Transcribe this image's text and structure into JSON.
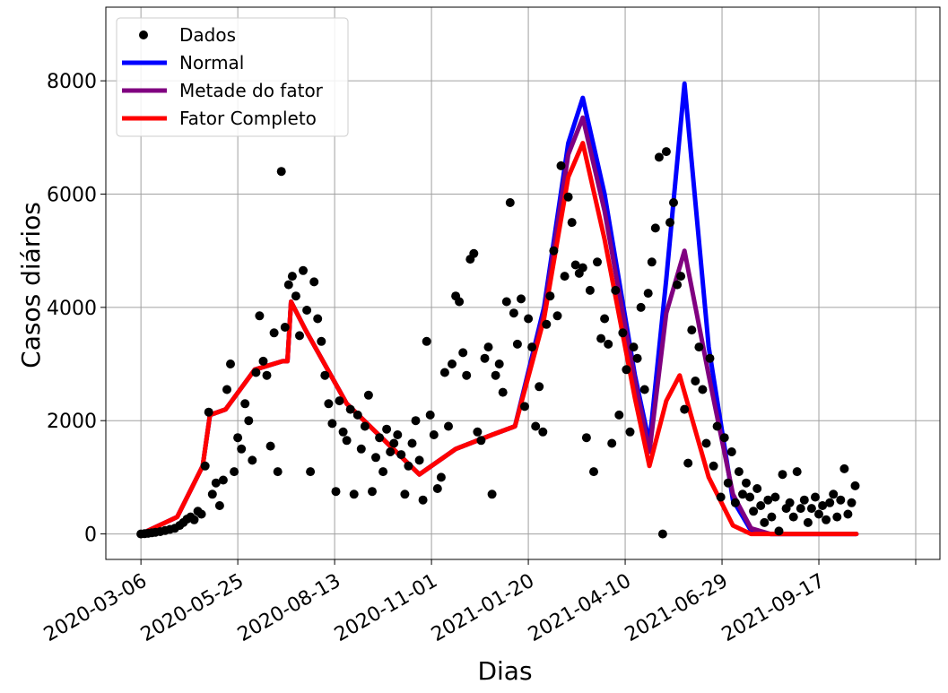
{
  "chart_data": {
    "type": "line",
    "title": "",
    "xlabel": "Dias",
    "ylabel": "Casos diários",
    "x_ticks": [
      "2020-03-06",
      "2020-05-25",
      "2020-08-13",
      "2020-11-01",
      "2021-01-20",
      "2021-04-10",
      "2021-06-29",
      "2021-09-17"
    ],
    "y_ticks": [
      "0",
      "2000",
      "4000",
      "6000",
      "8000"
    ],
    "xlim": [
      "2020-02-06",
      "2021-12-26"
    ],
    "ylim": [
      -450,
      9300
    ],
    "grid": true,
    "legend_position": "top-left",
    "series": [
      {
        "name": "Dados",
        "kind": "scatter",
        "color": "#000000",
        "points": [
          [
            "2020-03-06",
            0
          ],
          [
            "2020-03-09",
            5
          ],
          [
            "2020-03-12",
            10
          ],
          [
            "2020-03-15",
            20
          ],
          [
            "2020-03-18",
            30
          ],
          [
            "2020-03-22",
            40
          ],
          [
            "2020-03-26",
            60
          ],
          [
            "2020-03-30",
            80
          ],
          [
            "2020-04-03",
            100
          ],
          [
            "2020-04-07",
            150
          ],
          [
            "2020-04-10",
            200
          ],
          [
            "2020-04-13",
            260
          ],
          [
            "2020-04-16",
            300
          ],
          [
            "2020-04-19",
            250
          ],
          [
            "2020-04-22",
            400
          ],
          [
            "2020-04-25",
            350
          ],
          [
            "2020-04-28",
            1200
          ],
          [
            "2020-05-01",
            2150
          ],
          [
            "2020-05-04",
            700
          ],
          [
            "2020-05-07",
            900
          ],
          [
            "2020-05-10",
            500
          ],
          [
            "2020-05-13",
            950
          ],
          [
            "2020-05-16",
            2550
          ],
          [
            "2020-05-19",
            3000
          ],
          [
            "2020-05-22",
            1100
          ],
          [
            "2020-05-25",
            1700
          ],
          [
            "2020-05-28",
            1500
          ],
          [
            "2020-05-31",
            2300
          ],
          [
            "2020-06-03",
            2000
          ],
          [
            "2020-06-06",
            1300
          ],
          [
            "2020-06-09",
            2850
          ],
          [
            "2020-06-12",
            3850
          ],
          [
            "2020-06-15",
            3050
          ],
          [
            "2020-06-18",
            2800
          ],
          [
            "2020-06-21",
            1550
          ],
          [
            "2020-06-24",
            3550
          ],
          [
            "2020-06-27",
            1100
          ],
          [
            "2020-06-30",
            6400
          ],
          [
            "2020-07-03",
            3650
          ],
          [
            "2020-07-06",
            4400
          ],
          [
            "2020-07-09",
            4550
          ],
          [
            "2020-07-12",
            4200
          ],
          [
            "2020-07-15",
            3500
          ],
          [
            "2020-07-18",
            4650
          ],
          [
            "2020-07-21",
            3950
          ],
          [
            "2020-07-24",
            1100
          ],
          [
            "2020-07-27",
            4450
          ],
          [
            "2020-07-30",
            3800
          ],
          [
            "2020-08-02",
            3400
          ],
          [
            "2020-08-05",
            2800
          ],
          [
            "2020-08-08",
            2300
          ],
          [
            "2020-08-11",
            1950
          ],
          [
            "2020-08-14",
            750
          ],
          [
            "2020-08-17",
            2350
          ],
          [
            "2020-08-20",
            1800
          ],
          [
            "2020-08-23",
            1650
          ],
          [
            "2020-08-26",
            2200
          ],
          [
            "2020-08-29",
            700
          ],
          [
            "2020-09-01",
            2100
          ],
          [
            "2020-09-04",
            1500
          ],
          [
            "2020-09-07",
            1900
          ],
          [
            "2020-09-10",
            2450
          ],
          [
            "2020-09-13",
            750
          ],
          [
            "2020-09-16",
            1350
          ],
          [
            "2020-09-19",
            1700
          ],
          [
            "2020-09-22",
            1100
          ],
          [
            "2020-09-25",
            1850
          ],
          [
            "2020-09-28",
            1450
          ],
          [
            "2020-10-01",
            1600
          ],
          [
            "2020-10-04",
            1750
          ],
          [
            "2020-10-07",
            1400
          ],
          [
            "2020-10-10",
            700
          ],
          [
            "2020-10-13",
            1200
          ],
          [
            "2020-10-16",
            1600
          ],
          [
            "2020-10-19",
            2000
          ],
          [
            "2020-10-22",
            1300
          ],
          [
            "2020-10-25",
            600
          ],
          [
            "2020-10-28",
            3400
          ],
          [
            "2020-10-31",
            2100
          ],
          [
            "2020-11-03",
            1750
          ],
          [
            "2020-11-06",
            800
          ],
          [
            "2020-11-09",
            1000
          ],
          [
            "2020-11-12",
            2850
          ],
          [
            "2020-11-15",
            1900
          ],
          [
            "2020-11-18",
            3000
          ],
          [
            "2020-11-21",
            4200
          ],
          [
            "2020-11-24",
            4100
          ],
          [
            "2020-11-27",
            3200
          ],
          [
            "2020-11-30",
            2800
          ],
          [
            "2020-12-03",
            4850
          ],
          [
            "2020-12-06",
            4950
          ],
          [
            "2020-12-09",
            1800
          ],
          [
            "2020-12-12",
            1650
          ],
          [
            "2020-12-15",
            3100
          ],
          [
            "2020-12-18",
            3300
          ],
          [
            "2020-12-21",
            700
          ],
          [
            "2020-12-24",
            2800
          ],
          [
            "2020-12-27",
            3000
          ],
          [
            "2020-12-30",
            2500
          ],
          [
            "2021-01-02",
            4100
          ],
          [
            "2021-01-05",
            5850
          ],
          [
            "2021-01-08",
            3900
          ],
          [
            "2021-01-11",
            3350
          ],
          [
            "2021-01-14",
            4150
          ],
          [
            "2021-01-17",
            2250
          ],
          [
            "2021-01-20",
            3800
          ],
          [
            "2021-01-23",
            3300
          ],
          [
            "2021-01-26",
            1900
          ],
          [
            "2021-01-29",
            2600
          ],
          [
            "2021-02-01",
            1800
          ],
          [
            "2021-02-04",
            3700
          ],
          [
            "2021-02-07",
            4200
          ],
          [
            "2021-02-10",
            5000
          ],
          [
            "2021-02-13",
            3850
          ],
          [
            "2021-02-16",
            6500
          ],
          [
            "2021-02-19",
            4550
          ],
          [
            "2021-02-22",
            5950
          ],
          [
            "2021-02-25",
            5500
          ],
          [
            "2021-02-28",
            4750
          ],
          [
            "2021-03-03",
            4600
          ],
          [
            "2021-03-06",
            4700
          ],
          [
            "2021-03-09",
            1700
          ],
          [
            "2021-03-12",
            4300
          ],
          [
            "2021-03-15",
            1100
          ],
          [
            "2021-03-18",
            4800
          ],
          [
            "2021-03-21",
            3450
          ],
          [
            "2021-03-24",
            3800
          ],
          [
            "2021-03-27",
            3350
          ],
          [
            "2021-03-30",
            1600
          ],
          [
            "2021-04-02",
            4300
          ],
          [
            "2021-04-05",
            2100
          ],
          [
            "2021-04-08",
            3550
          ],
          [
            "2021-04-11",
            2900
          ],
          [
            "2021-04-14",
            1800
          ],
          [
            "2021-04-17",
            3300
          ],
          [
            "2021-04-20",
            3100
          ],
          [
            "2021-04-23",
            4000
          ],
          [
            "2021-04-26",
            2550
          ],
          [
            "2021-04-29",
            4250
          ],
          [
            "2021-05-02",
            4800
          ],
          [
            "2021-05-05",
            5400
          ],
          [
            "2021-05-08",
            6650
          ],
          [
            "2021-05-11",
            0
          ],
          [
            "2021-05-14",
            6750
          ],
          [
            "2021-05-17",
            5500
          ],
          [
            "2021-05-20",
            5850
          ],
          [
            "2021-05-23",
            4400
          ],
          [
            "2021-05-26",
            4550
          ],
          [
            "2021-05-29",
            2200
          ],
          [
            "2021-06-01",
            1250
          ],
          [
            "2021-06-04",
            3600
          ],
          [
            "2021-06-07",
            2700
          ],
          [
            "2021-06-10",
            3300
          ],
          [
            "2021-06-13",
            2550
          ],
          [
            "2021-06-16",
            1600
          ],
          [
            "2021-06-19",
            3100
          ],
          [
            "2021-06-22",
            1200
          ],
          [
            "2021-06-25",
            1900
          ],
          [
            "2021-06-28",
            650
          ],
          [
            "2021-07-01",
            1700
          ],
          [
            "2021-07-04",
            900
          ],
          [
            "2021-07-07",
            1450
          ],
          [
            "2021-07-10",
            550
          ],
          [
            "2021-07-13",
            1100
          ],
          [
            "2021-07-16",
            700
          ],
          [
            "2021-07-19",
            900
          ],
          [
            "2021-07-22",
            650
          ],
          [
            "2021-07-25",
            400
          ],
          [
            "2021-07-28",
            800
          ],
          [
            "2021-07-31",
            500
          ],
          [
            "2021-08-03",
            200
          ],
          [
            "2021-08-06",
            600
          ],
          [
            "2021-08-09",
            300
          ],
          [
            "2021-08-12",
            650
          ],
          [
            "2021-08-15",
            50
          ],
          [
            "2021-08-18",
            1050
          ],
          [
            "2021-08-21",
            450
          ],
          [
            "2021-08-24",
            550
          ],
          [
            "2021-08-27",
            300
          ],
          [
            "2021-08-30",
            1100
          ],
          [
            "2021-09-02",
            450
          ],
          [
            "2021-09-05",
            600
          ],
          [
            "2021-09-08",
            200
          ],
          [
            "2021-09-11",
            450
          ],
          [
            "2021-09-14",
            650
          ],
          [
            "2021-09-17",
            350
          ],
          [
            "2021-09-20",
            500
          ],
          [
            "2021-09-23",
            250
          ],
          [
            "2021-09-26",
            550
          ],
          [
            "2021-09-29",
            700
          ],
          [
            "2021-10-02",
            300
          ],
          [
            "2021-10-05",
            600
          ],
          [
            "2021-10-08",
            1150
          ],
          [
            "2021-10-11",
            350
          ],
          [
            "2021-10-14",
            550
          ],
          [
            "2021-10-17",
            850
          ]
        ]
      },
      {
        "name": "Normal",
        "kind": "line",
        "color": "#0000ff",
        "points": [
          [
            "2020-03-06",
            0
          ],
          [
            "2020-04-05",
            300
          ],
          [
            "2020-04-26",
            1200
          ],
          [
            "2020-05-02",
            2100
          ],
          [
            "2020-05-15",
            2200
          ],
          [
            "2020-06-08",
            2900
          ],
          [
            "2020-07-01",
            3050
          ],
          [
            "2020-07-05",
            3050
          ],
          [
            "2020-07-08",
            4100
          ],
          [
            "2020-07-20",
            3600
          ],
          [
            "2020-08-23",
            2300
          ],
          [
            "2020-10-22",
            1050
          ],
          [
            "2020-11-21",
            1500
          ],
          [
            "2020-12-21",
            1750
          ],
          [
            "2021-01-09",
            1900
          ],
          [
            "2021-02-02",
            4000
          ],
          [
            "2021-02-22",
            6900
          ],
          [
            "2021-03-06",
            7700
          ],
          [
            "2021-03-24",
            6000
          ],
          [
            "2021-04-18",
            2800
          ],
          [
            "2021-04-30",
            1600
          ],
          [
            "2021-05-14",
            4500
          ],
          [
            "2021-05-29",
            7950
          ],
          [
            "2021-06-18",
            3300
          ],
          [
            "2021-07-08",
            600
          ],
          [
            "2021-07-23",
            60
          ],
          [
            "2021-08-08",
            0
          ],
          [
            "2021-10-18",
            0
          ]
        ]
      },
      {
        "name": "Metade do fator",
        "kind": "line",
        "color": "#800080",
        "points": [
          [
            "2020-03-06",
            0
          ],
          [
            "2020-04-05",
            300
          ],
          [
            "2020-04-26",
            1200
          ],
          [
            "2020-05-02",
            2100
          ],
          [
            "2020-05-15",
            2200
          ],
          [
            "2020-06-08",
            2900
          ],
          [
            "2020-07-01",
            3050
          ],
          [
            "2020-07-05",
            3050
          ],
          [
            "2020-07-08",
            4100
          ],
          [
            "2020-07-20",
            3600
          ],
          [
            "2020-08-23",
            2300
          ],
          [
            "2020-10-22",
            1050
          ],
          [
            "2020-11-21",
            1500
          ],
          [
            "2020-12-21",
            1750
          ],
          [
            "2021-01-09",
            1900
          ],
          [
            "2021-02-02",
            3900
          ],
          [
            "2021-02-22",
            6700
          ],
          [
            "2021-03-06",
            7350
          ],
          [
            "2021-03-24",
            5700
          ],
          [
            "2021-04-18",
            2700
          ],
          [
            "2021-04-30",
            1450
          ],
          [
            "2021-05-14",
            3900
          ],
          [
            "2021-05-29",
            5000
          ],
          [
            "2021-06-18",
            2800
          ],
          [
            "2021-07-08",
            700
          ],
          [
            "2021-07-23",
            100
          ],
          [
            "2021-08-08",
            0
          ],
          [
            "2021-10-18",
            0
          ]
        ]
      },
      {
        "name": "Fator Completo",
        "kind": "line",
        "color": "#ff0000",
        "points": [
          [
            "2020-03-06",
            0
          ],
          [
            "2020-04-05",
            300
          ],
          [
            "2020-04-26",
            1200
          ],
          [
            "2020-05-02",
            2100
          ],
          [
            "2020-05-15",
            2200
          ],
          [
            "2020-06-08",
            2900
          ],
          [
            "2020-07-01",
            3050
          ],
          [
            "2020-07-05",
            3050
          ],
          [
            "2020-07-08",
            4100
          ],
          [
            "2020-07-20",
            3600
          ],
          [
            "2020-08-23",
            2300
          ],
          [
            "2020-10-22",
            1050
          ],
          [
            "2020-11-21",
            1500
          ],
          [
            "2020-12-21",
            1750
          ],
          [
            "2021-01-09",
            1900
          ],
          [
            "2021-02-02",
            3800
          ],
          [
            "2021-02-22",
            6300
          ],
          [
            "2021-03-06",
            6900
          ],
          [
            "2021-03-24",
            5200
          ],
          [
            "2021-04-18",
            2400
          ],
          [
            "2021-04-30",
            1200
          ],
          [
            "2021-05-14",
            2350
          ],
          [
            "2021-05-25",
            2800
          ],
          [
            "2021-06-18",
            1000
          ],
          [
            "2021-07-08",
            150
          ],
          [
            "2021-07-23",
            0
          ],
          [
            "2021-10-18",
            0
          ]
        ]
      }
    ]
  }
}
